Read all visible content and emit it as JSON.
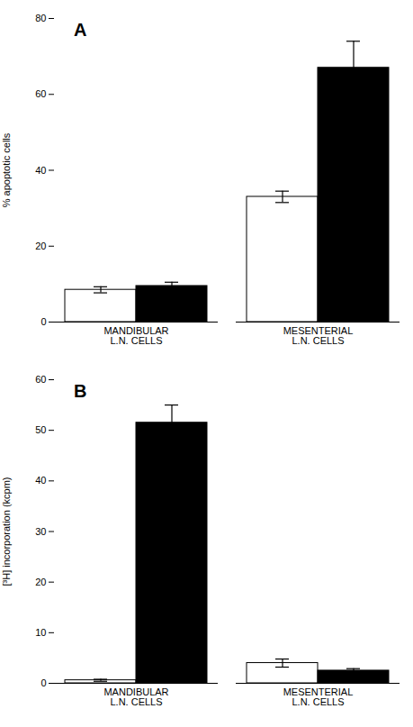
{
  "chart_data": [
    {
      "type": "bar",
      "title": "A",
      "categories": [
        "MANDIBULAR\nL.N. CELLS",
        "MESENTERIAL\nL.N. CELLS"
      ],
      "series": [
        {
          "color": "#ffffff",
          "values": [
            8.5,
            33.0
          ],
          "errors": [
            0.8,
            1.5
          ]
        },
        {
          "color": "#000000",
          "values": [
            9.5,
            67.0
          ],
          "errors": [
            1.0,
            7.0
          ]
        }
      ],
      "ylabel": "% apoptotic cells",
      "ylim": [
        0,
        80
      ],
      "yticks": [
        0,
        20,
        40,
        60,
        80
      ]
    },
    {
      "type": "bar",
      "title": "B",
      "categories": [
        "MANDIBULAR\nL.N. CELLS",
        "MESENTERIAL\nL.N. CELLS"
      ],
      "series": [
        {
          "color": "#ffffff",
          "values": [
            0.6,
            4.0
          ],
          "errors": [
            0.2,
            0.8
          ]
        },
        {
          "color": "#000000",
          "values": [
            51.5,
            2.5
          ],
          "errors": [
            3.5,
            0.4
          ]
        }
      ],
      "ylabel": "[³H] incorporation (kcpm)",
      "ylim": [
        0,
        60
      ],
      "yticks": [
        0,
        10,
        20,
        30,
        40,
        50,
        60
      ]
    }
  ]
}
